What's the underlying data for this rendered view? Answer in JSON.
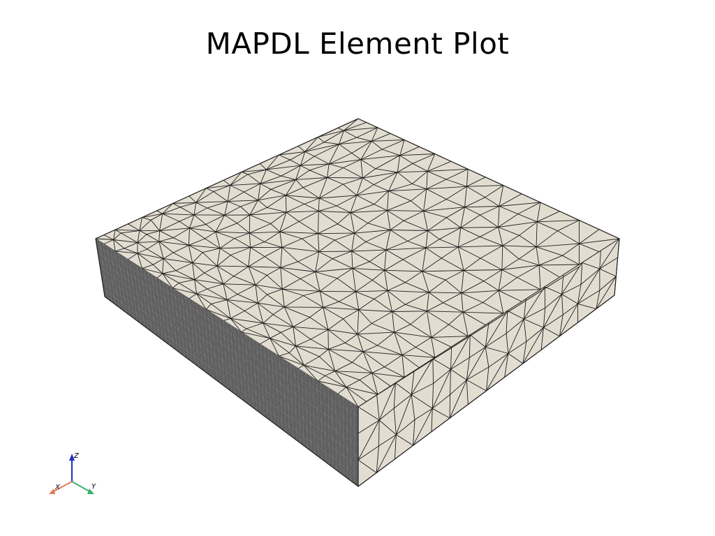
{
  "title": "MAPDL Element Plot",
  "colors": {
    "background": "#ffffff",
    "top_face": "#e3ddd1",
    "side_face": "#5e5e5e",
    "mesh_edge": "#1e1e1e",
    "axis_x": "#e07b5a",
    "axis_y": "#3fae6a",
    "axis_z": "#1f2fbf"
  },
  "axes_widget": {
    "x_label": "X",
    "y_label": "Y",
    "z_label": "Z"
  }
}
